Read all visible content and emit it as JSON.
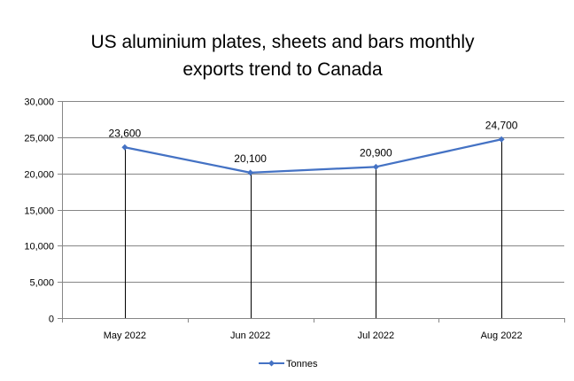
{
  "chart_data": {
    "type": "line",
    "title": "US aluminium plates, sheets and bars monthly exports trend to Canada",
    "title_lines": [
      "US aluminium plates, sheets and bars monthly",
      "exports trend to Canada"
    ],
    "xlabel": "",
    "ylabel": "",
    "categories": [
      "May 2022",
      "Jun 2022",
      "Jul 2022",
      "Aug 2022"
    ],
    "series": [
      {
        "name": "Tonnes",
        "values": [
          23600,
          20100,
          20900,
          24700
        ],
        "color": "#4472C4"
      }
    ],
    "data_labels": [
      "23,600",
      "20,100",
      "20,900",
      "24,700"
    ],
    "ylim": [
      0,
      30000
    ],
    "yticks": [
      0,
      5000,
      10000,
      15000,
      20000,
      25000,
      30000
    ],
    "ytick_labels": [
      "0",
      "5,000",
      "10,000",
      "15,000",
      "20,000",
      "25,000",
      "30,000"
    ],
    "grid": true,
    "drop_lines": true,
    "legend_position": "bottom"
  }
}
